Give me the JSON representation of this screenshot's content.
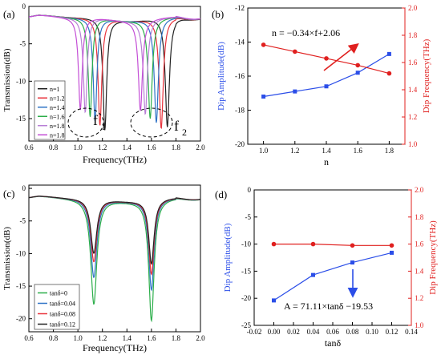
{
  "chart_data": [
    {
      "panel": "(a)",
      "type": "line",
      "xlabel": "Frequency(THz)",
      "ylabel": "Transmission(dB)",
      "xlim": [
        0.6,
        2.0
      ],
      "ylim": [
        -18,
        0
      ],
      "xticks": [
        "0.6",
        "0.8",
        "1.0",
        "1.2",
        "1.4",
        "1.6",
        "1.8",
        "2.0"
      ],
      "yticks": [
        "0",
        "-5",
        "-10",
        "-15"
      ],
      "legend_position": "lower-left",
      "annotations": [
        {
          "text": "f",
          "sub": "1"
        },
        {
          "text": "f",
          "sub": "2"
        }
      ],
      "series": [
        {
          "name": "n=1",
          "color": "#222222",
          "d1": 1.22,
          "a1": -16.6,
          "d2": 1.73,
          "a2": -16.2
        },
        {
          "name": "n=1.2",
          "color": "#e8333c",
          "d1": 1.18,
          "a1": -16.0,
          "d2": 1.68,
          "a2": -16.4
        },
        {
          "name": "n=1.4",
          "color": "#2f74c6",
          "d1": 1.14,
          "a1": -15.4,
          "d2": 1.64,
          "a2": -15.6
        },
        {
          "name": "n=1.6",
          "color": "#2cae4a",
          "d1": 1.1,
          "a1": -14.8,
          "d2": 1.59,
          "a2": -15.0
        },
        {
          "name": "n=1.8",
          "color": "#b87fd6",
          "d1": 1.06,
          "a1": -14.2,
          "d2": 1.55,
          "a2": -14.4
        },
        {
          "name": "n=1.8",
          "color": "#c44fd6",
          "d1": 1.02,
          "a1": -13.8,
          "d2": 1.51,
          "a2": -13.9
        }
      ]
    },
    {
      "panel": "(b)",
      "type": "line",
      "xlabel": "n",
      "ylabel": "Dip Amplitude(dB)",
      "ylabel_right": "Dip Frequency(THz)",
      "xlim": [
        0.9,
        1.9
      ],
      "ylim": [
        -20,
        -12
      ],
      "ylim_right": [
        1.0,
        2.0
      ],
      "xticks": [
        "1.0",
        "1.2",
        "1.4",
        "1.6",
        "1.8"
      ],
      "yticks": [
        "-12",
        "-14",
        "-16",
        "-18",
        "-20"
      ],
      "yticks_right": [
        "1.0",
        "1.2",
        "1.4",
        "1.6",
        "1.8",
        "2.0"
      ],
      "equation": "n = −0.34×f+2.06",
      "series": [
        {
          "axis": "left",
          "color": "#2b4ee8",
          "marker": "square",
          "x": [
            1.0,
            1.2,
            1.4,
            1.6,
            1.8
          ],
          "y": [
            -17.2,
            -16.9,
            -16.6,
            -15.8,
            -14.7
          ]
        },
        {
          "axis": "right",
          "color": "#e0201f",
          "marker": "circle",
          "x": [
            1.0,
            1.2,
            1.4,
            1.6,
            1.8
          ],
          "y": [
            1.73,
            1.68,
            1.63,
            1.58,
            1.52
          ]
        }
      ]
    },
    {
      "panel": "(c)",
      "type": "line",
      "xlabel": "Frequency(THz)",
      "ylabel": "Transmission(dB)",
      "xlim": [
        0.6,
        2.0
      ],
      "ylim": [
        -22,
        0.5
      ],
      "xticks": [
        "0.6",
        "0.8",
        "1.0",
        "1.2",
        "1.4",
        "1.6",
        "1.8",
        "2.0"
      ],
      "yticks": [
        "0",
        "-5",
        "-10",
        "-15",
        "-20"
      ],
      "legend_position": "lower-left",
      "series": [
        {
          "name": "tanδ=0",
          "color": "#2cae4a",
          "a1": -17.8,
          "a2": -20.3
        },
        {
          "name": "tanδ=0.04",
          "color": "#2f74c6",
          "a1": -13.7,
          "a2": -15.6
        },
        {
          "name": "tanδ=0.08",
          "color": "#e8333c",
          "a1": -11.3,
          "a2": -13.2
        },
        {
          "name": "tanδ=0.12",
          "color": "#222222",
          "a1": -10.0,
          "a2": -11.6
        }
      ]
    },
    {
      "panel": "(d)",
      "type": "line",
      "xlabel": "tanδ",
      "ylabel": "Dip Amplitude(dB)",
      "ylabel_right": "Dip Frequency(THz)",
      "xlim": [
        -0.02,
        0.14
      ],
      "ylim": [
        -25,
        0
      ],
      "ylim_right": [
        1.0,
        2.0
      ],
      "xticks": [
        "-0.02",
        "0.00",
        "0.02",
        "0.04",
        "0.06",
        "0.08",
        "0.10",
        "0.12",
        "0.14"
      ],
      "yticks": [
        "0",
        "-5",
        "-10",
        "-15",
        "-20",
        "-25"
      ],
      "yticks_right": [
        "1.0",
        "1.2",
        "1.4",
        "1.6",
        "1.8",
        "2.0"
      ],
      "equation": "A = 71.11×tanδ −19.53",
      "series": [
        {
          "axis": "left",
          "color": "#2b4ee8",
          "marker": "square",
          "x": [
            0.0,
            0.04,
            0.08,
            0.12
          ],
          "y": [
            -20.4,
            -15.7,
            -13.4,
            -11.6
          ]
        },
        {
          "axis": "right",
          "color": "#e0201f",
          "marker": "circle",
          "x": [
            0.0,
            0.04,
            0.08,
            0.12
          ],
          "y": [
            1.6,
            1.6,
            1.59,
            1.59
          ]
        }
      ]
    }
  ]
}
